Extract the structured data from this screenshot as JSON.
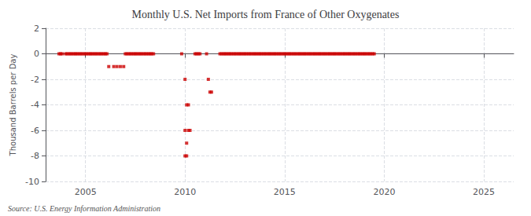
{
  "chart_data": {
    "type": "scatter",
    "title": "Monthly U.S. Net Imports from France of Other Oxygenates",
    "ylabel": "Thousand Barrels per Day",
    "annotation": "Source: U.S. Energy Information Administration",
    "color": "#cc0000",
    "marker": "square",
    "grid": true,
    "xlim": [
      2003.0,
      2026.5
    ],
    "xticks": [
      2005,
      2010,
      2015,
      2020,
      2025
    ],
    "ylim": [
      -10,
      2
    ],
    "yticks": [
      -10,
      -8,
      -6,
      -4,
      -2,
      0,
      2
    ],
    "x": [
      2003.67,
      2003.75,
      2003.83,
      2004.0,
      2004.08,
      2004.17,
      2004.25,
      2004.33,
      2004.42,
      2004.5,
      2004.58,
      2004.67,
      2004.75,
      2004.83,
      2004.92,
      2005.0,
      2005.08,
      2005.17,
      2005.25,
      2005.33,
      2005.42,
      2005.5,
      2005.58,
      2005.67,
      2005.75,
      2005.83,
      2005.92,
      2006.0,
      2006.08,
      2006.17,
      2006.42,
      2006.58,
      2006.75,
      2006.92,
      2007.0,
      2007.08,
      2007.17,
      2007.25,
      2007.33,
      2007.42,
      2007.5,
      2007.58,
      2007.67,
      2007.75,
      2007.83,
      2007.92,
      2008.0,
      2008.08,
      2008.17,
      2008.25,
      2008.33,
      2008.42,
      2009.83,
      2010.0,
      2010.08,
      2010.17,
      2010.0,
      2010.17,
      2010.25,
      2010.08,
      2010.0,
      2010.08,
      2010.5,
      2010.58,
      2010.67,
      2010.75,
      2011.08,
      2011.17,
      2011.25,
      2011.33,
      2011.75,
      2011.83,
      2011.92,
      2012.0,
      2012.08,
      2012.17,
      2012.25,
      2012.33,
      2012.42,
      2012.5,
      2012.58,
      2012.67,
      2012.75,
      2012.83,
      2012.92,
      2013.0,
      2013.08,
      2013.17,
      2013.25,
      2013.33,
      2013.42,
      2013.5,
      2013.58,
      2013.67,
      2013.75,
      2013.83,
      2013.92,
      2014.0,
      2014.08,
      2014.17,
      2014.25,
      2014.33,
      2014.42,
      2014.5,
      2014.58,
      2014.67,
      2014.75,
      2014.83,
      2014.92,
      2015.0,
      2015.08,
      2015.17,
      2015.25,
      2015.33,
      2015.42,
      2015.5,
      2015.58,
      2015.67,
      2015.75,
      2015.83,
      2015.92,
      2016.0,
      2016.08,
      2016.17,
      2016.25,
      2016.33,
      2016.42,
      2016.5,
      2016.58,
      2016.67,
      2016.75,
      2016.83,
      2016.92,
      2017.0,
      2017.08,
      2017.17,
      2017.25,
      2017.33,
      2017.42,
      2017.5,
      2017.58,
      2017.67,
      2017.75,
      2017.83,
      2017.92,
      2018.0,
      2018.08,
      2018.17,
      2018.25,
      2018.33,
      2018.42,
      2018.5,
      2018.58,
      2018.67,
      2018.75,
      2018.83,
      2018.92,
      2019.0,
      2019.08,
      2019.17,
      2019.25,
      2019.33,
      2019.42,
      2019.5
    ],
    "values": [
      0,
      0,
      0,
      0,
      0,
      0,
      0,
      0,
      0,
      0,
      0,
      0,
      0,
      0,
      0,
      0,
      0,
      0,
      0,
      0,
      0,
      0,
      0,
      0,
      0,
      0,
      0,
      0,
      0,
      -1.0,
      -1.0,
      -1.0,
      -1.0,
      -1.0,
      0,
      0,
      0,
      0,
      0,
      0,
      0,
      0,
      0,
      0,
      0,
      0,
      0,
      0,
      0,
      0,
      0,
      0,
      0,
      -2.0,
      -4.0,
      -4.0,
      -6.0,
      -6.0,
      -6.0,
      -7.0,
      -8.0,
      -8.0,
      0,
      0,
      0,
      0,
      0,
      -2.0,
      -3.0,
      -3.0,
      0,
      0,
      0,
      0,
      0,
      0,
      0,
      0,
      0,
      0,
      0,
      0,
      0,
      0,
      0,
      0,
      0,
      0,
      0,
      0,
      0,
      0,
      0,
      0,
      0,
      0,
      0,
      0,
      0,
      0,
      0,
      0,
      0,
      0,
      0,
      0,
      0,
      0,
      0,
      0,
      0,
      0,
      0,
      0,
      0,
      0,
      0,
      0,
      0,
      0,
      0,
      0,
      0,
      0,
      0,
      0,
      0,
      0,
      0,
      0,
      0,
      0,
      0,
      0,
      0,
      0,
      0,
      0,
      0,
      0,
      0,
      0,
      0,
      0,
      0,
      0,
      0,
      0,
      0,
      0,
      0,
      0,
      0,
      0,
      0,
      0,
      0,
      0,
      0,
      0,
      0,
      0,
      0,
      0
    ]
  }
}
